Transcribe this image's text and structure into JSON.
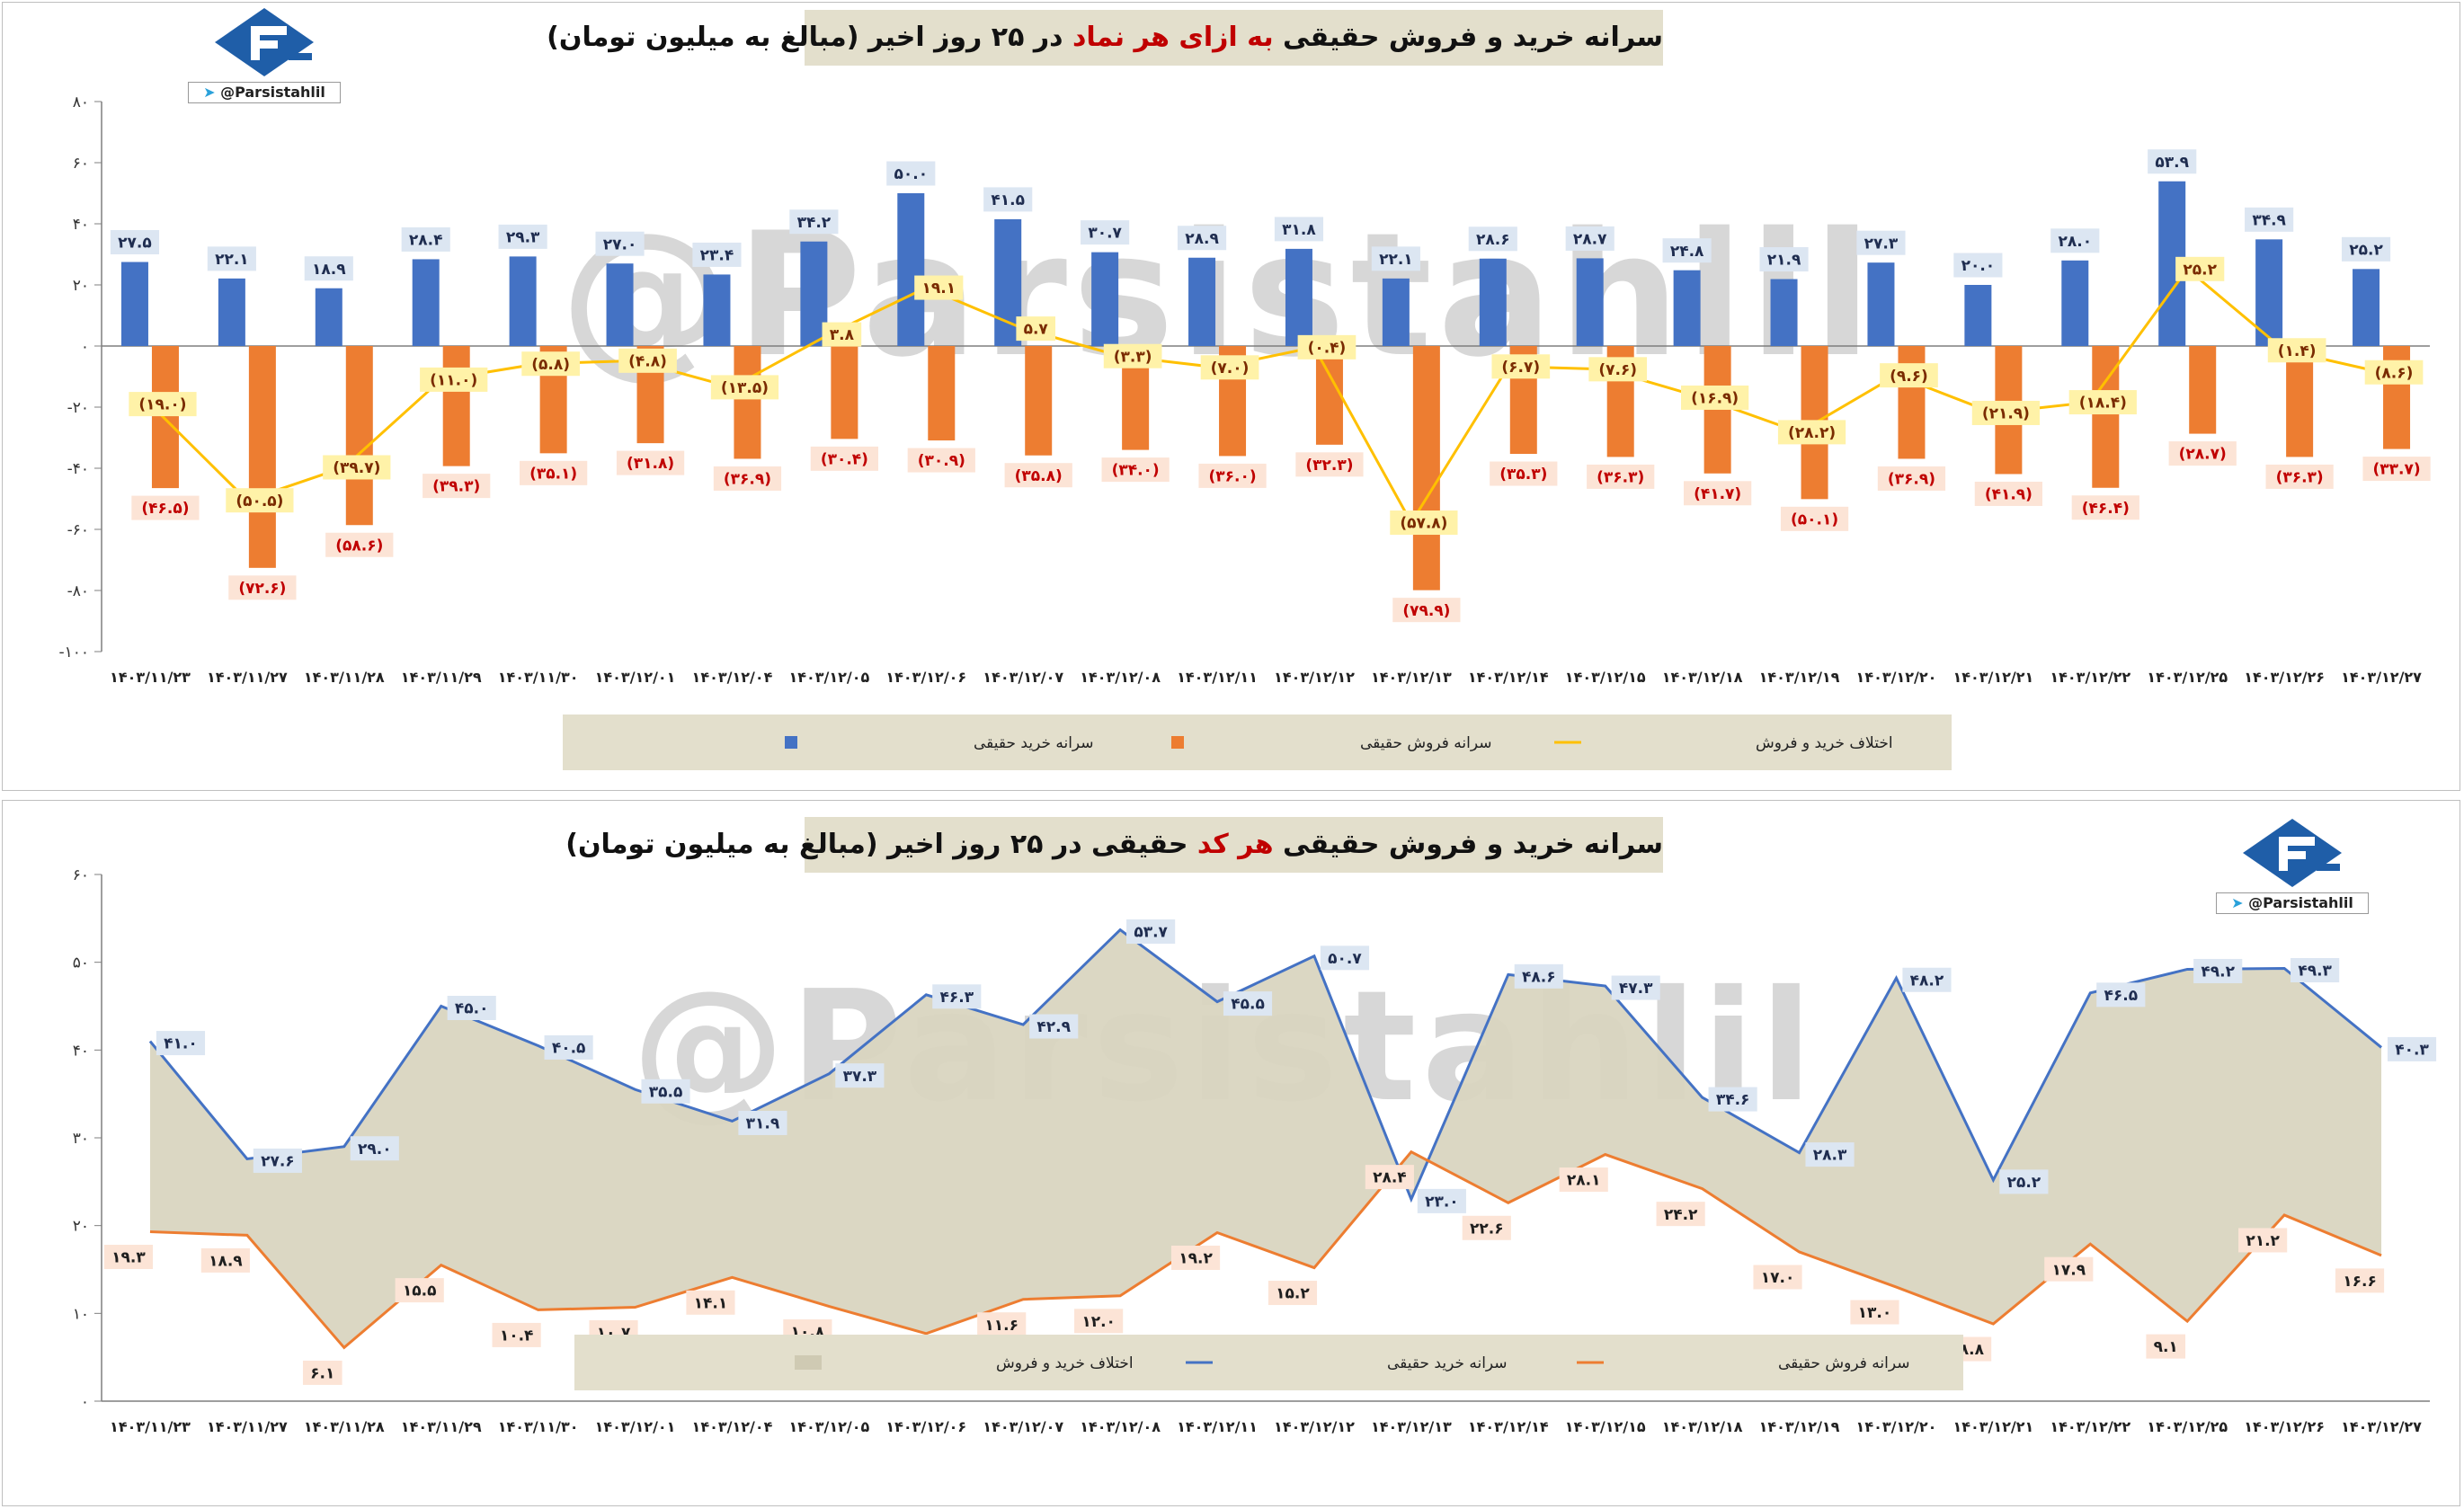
{
  "brand": {
    "handle": "@Parsistahlil",
    "watermark": "@Parsistahlil",
    "colors": {
      "logo_blue": "#1f5ea8",
      "legend_bg": "#e3dfcc"
    },
    "icons": [
      "brand-logo-icon",
      "telegram-icon"
    ]
  },
  "chart_data": [
    {
      "type": "bar",
      "title_parts": [
        "سرانه خرید و فروش حقیقی ",
        "به ازای هر نماد",
        " در ۲۵ روز اخیر (مبالغ به میلیون تومان)"
      ],
      "categories": [
        "۱۴۰۳/۱۱/۲۳",
        "۱۴۰۳/۱۱/۲۷",
        "۱۴۰۳/۱۱/۲۸",
        "۱۴۰۳/۱۱/۲۹",
        "۱۴۰۳/۱۱/۳۰",
        "۱۴۰۳/۱۲/۰۱",
        "۱۴۰۳/۱۲/۰۴",
        "۱۴۰۳/۱۲/۰۵",
        "۱۴۰۳/۱۲/۰۶",
        "۱۴۰۳/۱۲/۰۷",
        "۱۴۰۳/۱۲/۰۸",
        "۱۴۰۳/۱۲/۱۱",
        "۱۴۰۳/۱۲/۱۲",
        "۱۴۰۳/۱۲/۱۳",
        "۱۴۰۳/۱۲/۱۴",
        "۱۴۰۳/۱۲/۱۵",
        "۱۴۰۳/۱۲/۱۸",
        "۱۴۰۳/۱۲/۱۹",
        "۱۴۰۳/۱۲/۲۰",
        "۱۴۰۳/۱۲/۲۱",
        "۱۴۰۳/۱۲/۲۲",
        "۱۴۰۳/۱۲/۲۵",
        "۱۴۰۳/۱۲/۲۶",
        "۱۴۰۳/۱۲/۲۷"
      ],
      "ylim": [
        -100,
        80
      ],
      "yticks": [
        80,
        60,
        40,
        20,
        0,
        -20,
        -40,
        -60,
        -80,
        -100
      ],
      "ytick_labels": [
        "۸۰",
        "۶۰",
        "۴۰",
        "۲۰",
        "۰",
        "-۲۰",
        "-۴۰",
        "-۶۰",
        "-۸۰",
        "-۱۰۰"
      ],
      "grid": false,
      "legend_position": "bottom",
      "series": [
        {
          "name": "سرانه خرید حقیقی",
          "kind": "bar",
          "color": "#4472c4",
          "values": [
            27.5,
            22.1,
            18.9,
            28.4,
            29.3,
            27.0,
            23.4,
            34.2,
            50.0,
            41.5,
            30.7,
            28.9,
            31.8,
            22.1,
            28.6,
            28.7,
            24.8,
            21.9,
            27.3,
            20.0,
            28.0,
            53.9,
            34.9,
            25.2
          ],
          "labels": [
            "۲۷.۵",
            "۲۲.۱",
            "۱۸.۹",
            "۲۸.۴",
            "۲۹.۳",
            "۲۷.۰",
            "۲۳.۴",
            "۳۴.۲",
            "۵۰.۰",
            "۴۱.۵",
            "۳۰.۷",
            "۲۸.۹",
            "۳۱.۸",
            "۲۲.۱",
            "۲۸.۶",
            "۲۸.۷",
            "۲۴.۸",
            "۲۱.۹",
            "۲۷.۳",
            "۲۰.۰",
            "۲۸.۰",
            "۵۳.۹",
            "۳۴.۹",
            "۲۵.۲"
          ]
        },
        {
          "name": "سرانه فروش حقیقی",
          "kind": "bar",
          "color": "#ed7d31",
          "values": [
            -46.5,
            -72.6,
            -58.6,
            -39.3,
            -35.1,
            -31.8,
            -36.9,
            -30.4,
            -30.9,
            -35.8,
            -34.0,
            -36.0,
            -32.3,
            -79.9,
            -35.3,
            -36.3,
            -41.7,
            -50.1,
            -36.9,
            -41.9,
            -46.4,
            -28.7,
            -36.3,
            -33.7
          ],
          "labels": [
            "(۴۶.۵)",
            "(۷۲.۶)",
            "(۵۸.۶)",
            "(۳۹.۳)",
            "(۳۵.۱)",
            "(۳۱.۸)",
            "(۳۶.۹)",
            "(۳۰.۴)",
            "(۳۰.۹)",
            "(۳۵.۸)",
            "(۳۴.۰)",
            "(۳۶.۰)",
            "(۳۲.۳)",
            "(۷۹.۹)",
            "(۳۵.۳)",
            "(۳۶.۳)",
            "(۴۱.۷)",
            "(۵۰.۱)",
            "(۳۶.۹)",
            "(۴۱.۹)",
            "(۴۶.۴)",
            "(۲۸.۷)",
            "(۳۶.۳)",
            "(۳۳.۷)"
          ]
        },
        {
          "name": "اختلاف خرید و فروش",
          "kind": "line",
          "color": "#ffc000",
          "values": [
            -19.0,
            -50.5,
            -39.7,
            -11.0,
            -5.8,
            -4.8,
            -13.5,
            3.8,
            19.1,
            5.7,
            -3.3,
            -7.0,
            -0.4,
            -57.8,
            -6.7,
            -7.6,
            -16.9,
            -28.2,
            -9.6,
            -21.9,
            -18.4,
            25.2,
            -1.4,
            -8.6
          ],
          "labels": [
            "(۱۹.۰)",
            "(۵۰.۵)",
            "(۳۹.۷)",
            "(۱۱.۰)",
            "(۵.۸)",
            "(۴.۸)",
            "(۱۳.۵)",
            "۳.۸",
            "۱۹.۱",
            "۵.۷",
            "(۳.۳)",
            "(۷.۰)",
            "(۰.۴)",
            "(۵۷.۸)",
            "(۶.۷)",
            "(۷.۶)",
            "(۱۶.۹)",
            "(۲۸.۲)",
            "(۹.۶)",
            "(۲۱.۹)",
            "(۱۸.۴)",
            "۲۵.۲",
            "(۱.۴)",
            "(۸.۶)"
          ]
        }
      ]
    },
    {
      "type": "line",
      "title_parts": [
        "سرانه خرید و فروش حقیقی ",
        "هر کد",
        " حقیقی در ۲۵ روز اخیر (مبالغ به میلیون تومان)"
      ],
      "categories": [
        "۱۴۰۳/۱۱/۲۳",
        "۱۴۰۳/۱۱/۲۷",
        "۱۴۰۳/۱۱/۲۸",
        "۱۴۰۳/۱۱/۲۹",
        "۱۴۰۳/۱۱/۳۰",
        "۱۴۰۳/۱۲/۰۱",
        "۱۴۰۳/۱۲/۰۴",
        "۱۴۰۳/۱۲/۰۵",
        "۱۴۰۳/۱۲/۰۶",
        "۱۴۰۳/۱۲/۰۷",
        "۱۴۰۳/۱۲/۰۸",
        "۱۴۰۳/۱۲/۱۱",
        "۱۴۰۳/۱۲/۱۲",
        "۱۴۰۳/۱۲/۱۳",
        "۱۴۰۳/۱۲/۱۴",
        "۱۴۰۳/۱۲/۱۵",
        "۱۴۰۳/۱۲/۱۸",
        "۱۴۰۳/۱۲/۱۹",
        "۱۴۰۳/۱۲/۲۰",
        "۱۴۰۳/۱۲/۲۱",
        "۱۴۰۳/۱۲/۲۲",
        "۱۴۰۳/۱۲/۲۵",
        "۱۴۰۳/۱۲/۲۶",
        "۱۴۰۳/۱۲/۲۷"
      ],
      "ylim": [
        0,
        60
      ],
      "yticks": [
        60,
        50,
        40,
        30,
        20,
        10,
        0
      ],
      "ytick_labels": [
        "۶۰",
        "۵۰",
        "۴۰",
        "۳۰",
        "۲۰",
        "۱۰",
        "۰"
      ],
      "grid": false,
      "legend_position": "bottom",
      "series": [
        {
          "name": "سرانه خرید حقیقی",
          "kind": "line",
          "color": "#4472c4",
          "values": [
            41.0,
            27.6,
            29.0,
            45.0,
            40.5,
            35.5,
            31.9,
            37.3,
            46.3,
            42.9,
            53.7,
            45.5,
            50.7,
            23.0,
            48.6,
            47.3,
            34.6,
            28.3,
            48.2,
            25.2,
            46.5,
            49.2,
            49.3,
            40.3
          ],
          "labels": [
            "۴۱.۰",
            "۲۷.۶",
            "۲۹.۰",
            "۴۵.۰",
            "۴۰.۵",
            "۳۵.۵",
            "۳۱.۹",
            "۳۷.۳",
            "۴۶.۳",
            "۴۲.۹",
            "۵۳.۷",
            "۴۵.۵",
            "۵۰.۷",
            "۲۳.۰",
            "۴۸.۶",
            "۴۷.۳",
            "۳۴.۶",
            "۲۸.۳",
            "۴۸.۲",
            "۲۵.۲",
            "۴۶.۵",
            "۴۹.۲",
            "۴۹.۳",
            "۴۰.۳"
          ]
        },
        {
          "name": "سرانه فروش حقیقی",
          "kind": "line",
          "color": "#ed7d31",
          "values": [
            19.3,
            18.9,
            6.1,
            15.5,
            10.4,
            10.7,
            14.1,
            10.8,
            7.7,
            11.6,
            12.0,
            19.2,
            15.2,
            28.4,
            22.6,
            28.1,
            24.2,
            17.0,
            13.0,
            8.8,
            17.9,
            9.1,
            21.2,
            16.6
          ],
          "labels": [
            "۱۹.۳",
            "۱۸.۹",
            "۶.۱",
            "۱۵.۵",
            "۱۰.۴",
            "۱۰.۷",
            "۱۴.۱",
            "۱۰.۸",
            "",
            "۱۱.۶",
            "۱۲.۰",
            "۱۹.۲",
            "۱۵.۲",
            "۲۸.۴",
            "۲۲.۶",
            "۲۸.۱",
            "۲۴.۲",
            "۱۷.۰",
            "۱۳.۰",
            "۸.۸",
            "۱۷.۹",
            "۹.۱",
            "۲۱.۲",
            "۱۶.۶"
          ]
        },
        {
          "name": "اختلاف خرید و فروش",
          "kind": "area",
          "color": "#d9d5c0"
        }
      ]
    }
  ]
}
